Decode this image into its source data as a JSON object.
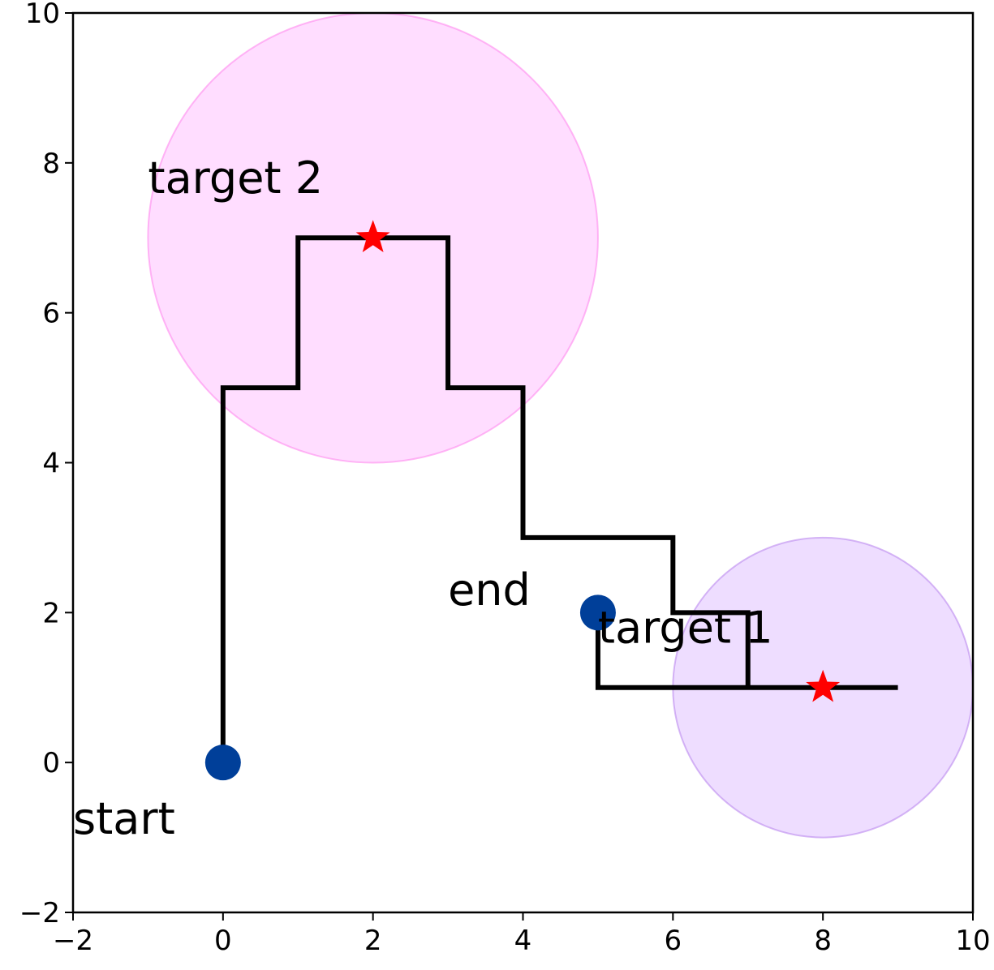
{
  "chart_data": {
    "type": "line",
    "title": "",
    "xlabel": "",
    "ylabel": "",
    "xlim": [
      -2,
      10
    ],
    "ylim": [
      -2,
      10
    ],
    "xticks": [
      -2,
      0,
      2,
      4,
      6,
      8,
      10
    ],
    "yticks": [
      -2,
      0,
      2,
      4,
      6,
      8,
      10
    ],
    "xtick_labels": [
      "−2",
      "0",
      "2",
      "4",
      "6",
      "8",
      "10"
    ],
    "ytick_labels": [
      "−2",
      "0",
      "2",
      "4",
      "6",
      "8",
      "10"
    ],
    "grid": false,
    "path": {
      "color": "#000000",
      "x": [
        0,
        0,
        1,
        1,
        3,
        3,
        4,
        4,
        6,
        6,
        7,
        7,
        9,
        5,
        5
      ],
      "y": [
        0,
        5,
        5,
        7,
        7,
        5,
        5,
        3,
        3,
        2,
        2,
        1,
        1,
        1,
        2
      ]
    },
    "regions": [
      {
        "cx": 2,
        "cy": 7,
        "r": 3,
        "fill": "#ff99ff",
        "edge": "#ff88ee"
      },
      {
        "cx": 8,
        "cy": 1,
        "r": 2,
        "fill": "#cc99ff",
        "edge": "#bb88ee"
      }
    ],
    "markers": [
      {
        "label": "start",
        "x": 0,
        "y": 0,
        "shape": "circle",
        "color": "#003f99",
        "label_x": -2.0,
        "label_y": -0.95
      },
      {
        "label": "end",
        "x": 5,
        "y": 2,
        "shape": "circle",
        "color": "#003f99",
        "label_x": 3.0,
        "label_y": 2.1
      },
      {
        "label": "target 1",
        "x": 8,
        "y": 1,
        "shape": "star",
        "color": "#ff0000",
        "label_x": 5.0,
        "label_y": 1.6
      },
      {
        "label": "target 2",
        "x": 2,
        "y": 7,
        "shape": "star",
        "color": "#ff0000",
        "label_x": -1.0,
        "label_y": 7.6
      }
    ]
  }
}
